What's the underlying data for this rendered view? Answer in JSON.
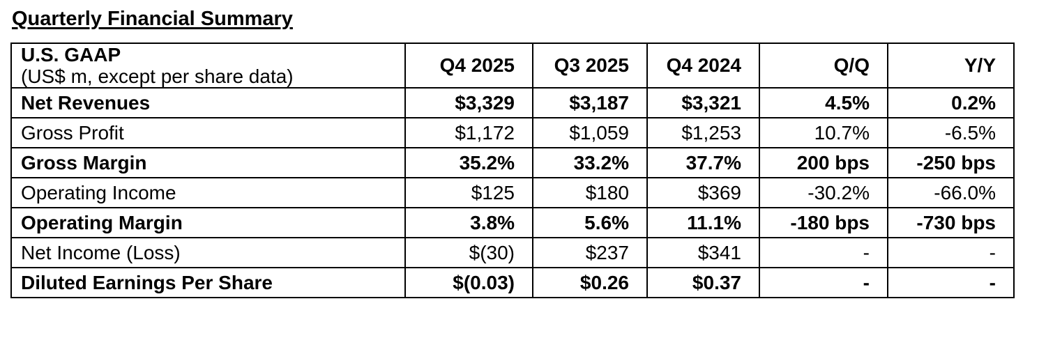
{
  "page": {
    "title": "Quarterly Financial Summary"
  },
  "table": {
    "header": {
      "label_line1": "U.S. GAAP",
      "label_line2": "(US$ m, except per share data)",
      "columns": [
        "Q4 2025",
        "Q3 2025",
        "Q4 2024",
        "Q/Q",
        "Y/Y"
      ]
    },
    "rows": [
      {
        "label": "Net Revenues",
        "style": "bold",
        "values": [
          "$3,329",
          "$3,187",
          "$3,321",
          "4.5%",
          "0.2%"
        ]
      },
      {
        "label": "Gross Profit",
        "style": "normal",
        "values": [
          "$1,172",
          "$1,059",
          "$1,253",
          "10.7%",
          "-6.5%"
        ]
      },
      {
        "label": "Gross Margin",
        "style": "bold",
        "values": [
          "35.2%",
          "33.2%",
          "37.7%",
          "200 bps",
          "-250 bps"
        ]
      },
      {
        "label": "Operating Income",
        "style": "normal",
        "values": [
          "$125",
          "$180",
          "$369",
          "-30.2%",
          "-66.0%"
        ]
      },
      {
        "label": "Operating Margin",
        "style": "bold",
        "values": [
          "3.8%",
          "5.6%",
          "11.1%",
          "-180 bps",
          "-730 bps"
        ]
      },
      {
        "label": "Net Income (Loss)",
        "style": "normal",
        "values": [
          "$(30)",
          "$237",
          "$341",
          "-",
          "-"
        ]
      },
      {
        "label": "Diluted Earnings Per Share",
        "style": "bold",
        "values": [
          "$(0.03)",
          "$0.26",
          "$0.37",
          "-",
          "-"
        ]
      }
    ],
    "colors": {
      "text": "#000000",
      "border": "#000000",
      "background": "#ffffff"
    }
  }
}
